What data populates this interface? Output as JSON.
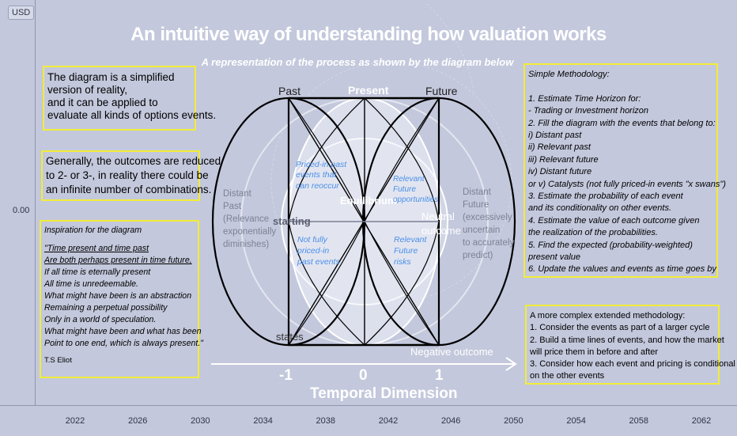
{
  "axis": {
    "currency_label": "USD",
    "y_label": "0.00",
    "x_ticks": [
      "2022",
      "2026",
      "2030",
      "2034",
      "2038",
      "2042",
      "2046",
      "2050",
      "2054",
      "2058",
      "2062"
    ]
  },
  "header": {
    "title": "An intuitive way of understanding how valuation works",
    "subtitle": "A representation of the process as shown by the diagram below"
  },
  "left_boxes": {
    "box1_lines": [
      "The diagram is a simplified",
      "version of reality,",
      "and it can be applied to",
      "evaluate all kinds of options events."
    ],
    "box2_lines": [
      "Generally, the outcomes are reduced",
      "to 2- or 3-, in reality there could be",
      "an infinite number of combinations."
    ],
    "inspiration": {
      "heading": "Inspiration for the diagram",
      "quote_lines": [
        "\"Time present and time past",
        "Are both perhaps present in time future,",
        "If all time is eternally present",
        "All time is unredeemable.",
        "What might have been is an abstraction",
        "Remaining a perpetual possibility",
        "Only in a world of speculation.",
        "What might have been and what has been",
        "Point to one end, which is always present.\""
      ],
      "author": "T.S Eliot"
    }
  },
  "right_boxes": {
    "methodology_lines": [
      "Simple Methodology:",
      "",
      "1. Estimate Time Horizon for:",
      " - Trading or Investment horizon",
      "2. Fill the diagram with the events that belong to:",
      "i) Distant past",
      "ii) Relevant past",
      "iii) Relevant future",
      "iv) Distant future",
      "or v) Catalysts (not fully priced-in events \"x swans\")",
      "3. Estimate the probability of each event",
      "and its conditionality on other events.",
      "4. Estimate the value of each outcome given",
      " the realization of the probabilities.",
      "5. Find the expected (probability-weighted)",
      "present value",
      "6. Update the values and events as time goes by"
    ],
    "extended_lines": [
      "A more complex extended methodology:",
      "1. Consider the events as part of a larger cycle",
      "2. Build a time lines of events, and how the market",
      "will price them in before and after",
      "3. Consider how each event and pricing is conditional",
      " on the other events"
    ]
  },
  "diagram": {
    "label_past": "Past",
    "label_present": "Present",
    "label_future": "Future",
    "label_starting": "starting",
    "label_states": "states",
    "label_equilibrium": "Equilibrium",
    "label_neutral": [
      "Neutral",
      "outcome"
    ],
    "label_negative": "Negative outcome",
    "distant_past": [
      "Distant",
      "Past",
      "(Relevance",
      "exponentially",
      "diminishes)"
    ],
    "distant_future": [
      "Distant",
      "Future",
      "(excessively",
      "uncertain",
      "to accurately",
      "predict)"
    ],
    "priced_in_past": [
      "Priced-in past",
      "events that",
      "can reoccur"
    ],
    "relevant_future_opps": [
      "Relevant",
      "Future",
      "opportunities"
    ],
    "not_priced_in": [
      "Not fully",
      "priced-in",
      "past events"
    ],
    "relevant_future_risks": [
      "Relevant",
      "Future",
      "risks"
    ],
    "tick_minus_one": "-1",
    "tick_zero": "0",
    "tick_one": "1",
    "axis_title": "Temporal Dimension",
    "colors": {
      "blue_text": "#4b8fe8",
      "grey_text": "#7d8294",
      "highlight": "#f2ec38"
    }
  }
}
